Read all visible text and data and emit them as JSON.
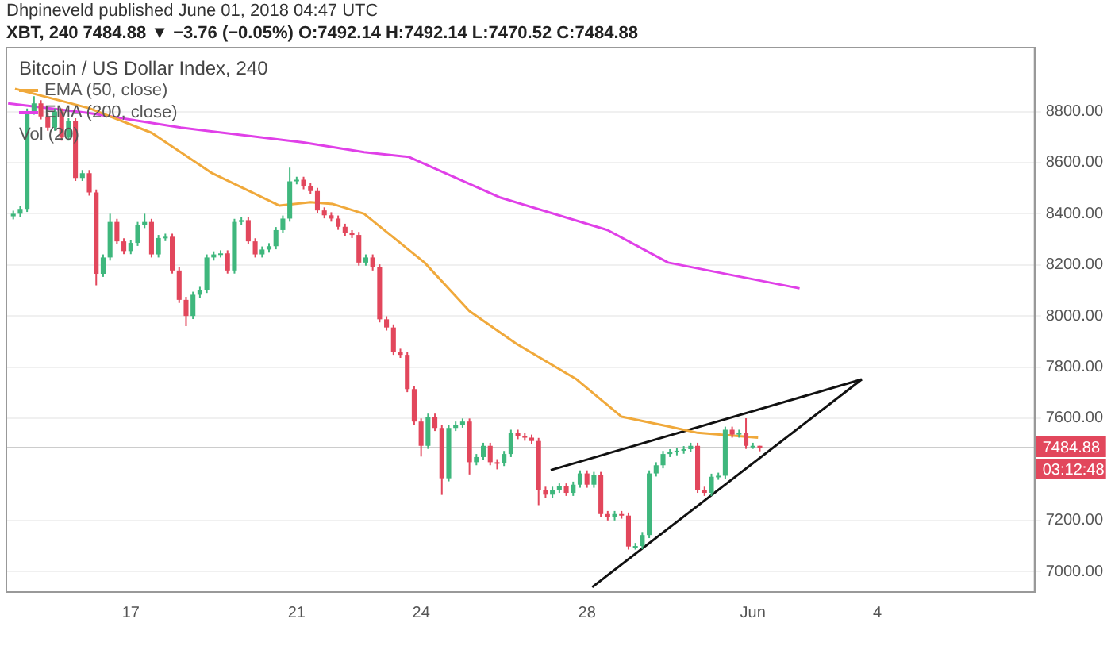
{
  "chart_data": {
    "type": "candlestick",
    "title": "Bitcoin / US Dollar Index, 240",
    "subtitle": "XBT, 240 7484.88 ▼ −3.76 (−0.05%) O:7492.14 H:7492.14 L:7470.52 C:7484.88",
    "annotations": [
      "Dhpineveld published June 01, 2018 04:47 UTC",
      "Vol (20)",
      "03:12:48"
    ],
    "x": [
      "2018-05-14T04:00",
      "2018-05-14T08:00",
      "2018-05-14T12:00",
      "2018-05-14T16:00",
      "2018-05-14T20:00",
      "2018-05-15T00:00",
      "2018-05-15T04:00",
      "2018-05-15T08:00",
      "2018-05-15T12:00",
      "2018-05-15T16:00",
      "2018-05-15T20:00",
      "2018-05-16T00:00",
      "2018-05-16T04:00",
      "2018-05-16T08:00",
      "2018-05-16T12:00",
      "2018-05-16T16:00",
      "2018-05-16T20:00",
      "2018-05-17T00:00",
      "2018-05-17T04:00",
      "2018-05-17T08:00",
      "2018-05-17T12:00",
      "2018-05-17T16:00",
      "2018-05-17T20:00",
      "2018-05-18T00:00",
      "2018-05-18T04:00",
      "2018-05-18T08:00",
      "2018-05-18T12:00",
      "2018-05-18T16:00",
      "2018-05-18T20:00",
      "2018-05-19T00:00",
      "2018-05-19T04:00",
      "2018-05-19T08:00",
      "2018-05-19T12:00",
      "2018-05-19T16:00",
      "2018-05-19T20:00",
      "2018-05-20T00:00",
      "2018-05-20T04:00",
      "2018-05-20T08:00",
      "2018-05-20T12:00",
      "2018-05-20T16:00",
      "2018-05-20T20:00",
      "2018-05-21T00:00",
      "2018-05-21T04:00",
      "2018-05-21T08:00",
      "2018-05-21T12:00",
      "2018-05-21T16:00",
      "2018-05-21T20:00",
      "2018-05-22T00:00",
      "2018-05-22T04:00",
      "2018-05-22T08:00",
      "2018-05-22T12:00",
      "2018-05-22T16:00",
      "2018-05-22T20:00",
      "2018-05-23T00:00",
      "2018-05-23T04:00",
      "2018-05-23T08:00",
      "2018-05-23T12:00",
      "2018-05-23T16:00",
      "2018-05-23T20:00",
      "2018-05-24T00:00",
      "2018-05-24T04:00",
      "2018-05-24T08:00",
      "2018-05-24T12:00",
      "2018-05-24T16:00",
      "2018-05-24T20:00",
      "2018-05-25T00:00",
      "2018-05-25T04:00",
      "2018-05-25T08:00",
      "2018-05-25T12:00",
      "2018-05-25T16:00",
      "2018-05-25T20:00",
      "2018-05-26T00:00",
      "2018-05-26T04:00",
      "2018-05-26T08:00",
      "2018-05-26T12:00",
      "2018-05-26T16:00",
      "2018-05-26T20:00",
      "2018-05-27T00:00",
      "2018-05-27T04:00",
      "2018-05-27T08:00",
      "2018-05-27T12:00",
      "2018-05-27T16:00",
      "2018-05-27T20:00",
      "2018-05-28T00:00",
      "2018-05-28T04:00",
      "2018-05-28T08:00",
      "2018-05-28T12:00",
      "2018-05-28T16:00",
      "2018-05-28T20:00",
      "2018-05-29T00:00",
      "2018-05-29T04:00",
      "2018-05-29T08:00",
      "2018-05-29T12:00",
      "2018-05-29T16:00",
      "2018-05-29T20:00",
      "2018-05-30T00:00",
      "2018-05-30T04:00",
      "2018-05-30T08:00",
      "2018-05-30T12:00",
      "2018-05-30T16:00",
      "2018-05-30T20:00",
      "2018-05-31T00:00",
      "2018-05-31T04:00",
      "2018-05-31T08:00",
      "2018-05-31T12:00",
      "2018-05-31T16:00",
      "2018-05-31T20:00",
      "2018-06-01T00:00",
      "2018-06-01T04:00"
    ],
    "ohlc": [
      [
        8390,
        8412,
        8378,
        8400
      ],
      [
        8400,
        8431,
        8388,
        8419
      ],
      [
        8419,
        8812,
        8407,
        8800
      ],
      [
        8800,
        8860,
        8788,
        8832
      ],
      [
        8832,
        8844,
        8769,
        8781
      ],
      [
        8781,
        8793,
        8725,
        8737
      ],
      [
        8737,
        8812,
        8725,
        8800
      ],
      [
        8800,
        8812,
        8686,
        8698
      ],
      [
        8698,
        8774,
        8686,
        8762
      ],
      [
        8762,
        8774,
        8528,
        8540
      ],
      [
        8540,
        8571,
        8528,
        8559
      ],
      [
        8559,
        8571,
        8471,
        8483
      ],
      [
        8483,
        8495,
        8120,
        8165
      ],
      [
        8165,
        8241,
        8153,
        8229
      ],
      [
        8229,
        8400,
        8217,
        8368
      ],
      [
        8368,
        8380,
        8280,
        8292
      ],
      [
        8292,
        8304,
        8242,
        8254
      ],
      [
        8254,
        8298,
        8242,
        8286
      ],
      [
        8286,
        8368,
        8274,
        8356
      ],
      [
        8356,
        8400,
        8344,
        8368
      ],
      [
        8368,
        8380,
        8229,
        8241
      ],
      [
        8241,
        8317,
        8229,
        8305
      ],
      [
        8305,
        8322,
        8293,
        8310
      ],
      [
        8310,
        8322,
        8166,
        8178
      ],
      [
        8178,
        8190,
        8051,
        8063
      ],
      [
        8063,
        8075,
        7960,
        8000
      ],
      [
        8000,
        8095,
        7988,
        8083
      ],
      [
        8083,
        8114,
        8071,
        8102
      ],
      [
        8102,
        8241,
        8090,
        8229
      ],
      [
        8229,
        8253,
        8217,
        8241
      ],
      [
        8241,
        8257,
        8229,
        8245
      ],
      [
        8245,
        8257,
        8166,
        8178
      ],
      [
        8178,
        8380,
        8166,
        8368
      ],
      [
        8368,
        8387,
        8356,
        8375
      ],
      [
        8375,
        8387,
        8280,
        8292
      ],
      [
        8292,
        8304,
        8229,
        8241
      ],
      [
        8241,
        8272,
        8229,
        8260
      ],
      [
        8260,
        8285,
        8248,
        8273
      ],
      [
        8273,
        8348,
        8261,
        8336
      ],
      [
        8336,
        8393,
        8324,
        8381
      ],
      [
        8381,
        8580,
        8369,
        8527
      ],
      [
        8527,
        8545,
        8515,
        8533
      ],
      [
        8533,
        8545,
        8496,
        8508
      ],
      [
        8508,
        8520,
        8477,
        8489
      ],
      [
        8489,
        8501,
        8401,
        8413
      ],
      [
        8413,
        8425,
        8382,
        8394
      ],
      [
        8394,
        8406,
        8369,
        8381
      ],
      [
        8381,
        8393,
        8337,
        8349
      ],
      [
        8349,
        8361,
        8312,
        8324
      ],
      [
        8324,
        8336,
        8305,
        8317
      ],
      [
        8317,
        8329,
        8197,
        8209
      ],
      [
        8209,
        8241,
        8197,
        8229
      ],
      [
        8229,
        8241,
        8178,
        8190
      ],
      [
        8190,
        8202,
        7975,
        7987
      ],
      [
        7987,
        7999,
        7943,
        7955
      ],
      [
        7955,
        7967,
        7848,
        7860
      ],
      [
        7860,
        7872,
        7836,
        7848
      ],
      [
        7848,
        7860,
        7702,
        7714
      ],
      [
        7714,
        7726,
        7575,
        7587
      ],
      [
        7587,
        7599,
        7450,
        7492
      ],
      [
        7492,
        7618,
        7480,
        7606
      ],
      [
        7606,
        7618,
        7550,
        7562
      ],
      [
        7562,
        7574,
        7300,
        7365
      ],
      [
        7365,
        7574,
        7353,
        7562
      ],
      [
        7562,
        7587,
        7550,
        7575
      ],
      [
        7575,
        7599,
        7563,
        7587
      ],
      [
        7587,
        7599,
        7380,
        7428
      ],
      [
        7428,
        7460,
        7416,
        7448
      ],
      [
        7448,
        7504,
        7436,
        7492
      ],
      [
        7492,
        7504,
        7416,
        7428
      ],
      [
        7428,
        7440,
        7400,
        7425
      ],
      [
        7425,
        7472,
        7413,
        7460
      ],
      [
        7460,
        7555,
        7448,
        7543
      ],
      [
        7543,
        7555,
        7518,
        7530
      ],
      [
        7530,
        7542,
        7512,
        7524
      ],
      [
        7524,
        7536,
        7499,
        7511
      ],
      [
        7511,
        7523,
        7260,
        7320
      ],
      [
        7320,
        7332,
        7289,
        7301
      ],
      [
        7301,
        7332,
        7289,
        7320
      ],
      [
        7320,
        7345,
        7308,
        7333
      ],
      [
        7333,
        7345,
        7296,
        7308
      ],
      [
        7308,
        7352,
        7296,
        7340
      ],
      [
        7340,
        7396,
        7328,
        7384
      ],
      [
        7384,
        7396,
        7328,
        7340
      ],
      [
        7340,
        7390,
        7328,
        7378
      ],
      [
        7378,
        7390,
        7213,
        7225
      ],
      [
        7225,
        7237,
        7200,
        7212
      ],
      [
        7212,
        7237,
        7200,
        7225
      ],
      [
        7225,
        7237,
        7207,
        7219
      ],
      [
        7219,
        7231,
        7086,
        7098
      ],
      [
        7098,
        7112,
        7086,
        7100
      ],
      [
        7100,
        7155,
        7088,
        7143
      ],
      [
        7143,
        7396,
        7131,
        7384
      ],
      [
        7384,
        7428,
        7372,
        7416
      ],
      [
        7416,
        7472,
        7404,
        7460
      ],
      [
        7460,
        7479,
        7448,
        7467
      ],
      [
        7467,
        7485,
        7455,
        7473
      ],
      [
        7473,
        7491,
        7461,
        7479
      ],
      [
        7479,
        7504,
        7467,
        7492
      ],
      [
        7492,
        7504,
        7308,
        7320
      ],
      [
        7320,
        7332,
        7296,
        7308
      ],
      [
        7308,
        7383,
        7296,
        7371
      ],
      [
        7371,
        7387,
        7359,
        7375
      ],
      [
        7375,
        7567,
        7363,
        7555
      ],
      [
        7555,
        7567,
        7524,
        7536
      ],
      [
        7536,
        7555,
        7524,
        7543
      ],
      [
        7543,
        7600,
        7480,
        7492
      ],
      [
        7492,
        7504,
        7480,
        7492.14
      ],
      [
        7492.14,
        7492.14,
        7470.52,
        7484.88
      ]
    ],
    "series": [
      {
        "type": "line",
        "name": "EMA (50, close)",
        "color": "#f0a93b",
        "x": [
          "2018-05-14T05:00",
          "2018-05-16T00:00",
          "2018-05-17T12:00",
          "2018-05-18T23:00",
          "2018-05-20T14:00",
          "2018-05-21T08:00",
          "2018-05-21T21:00",
          "2018-05-22T15:00",
          "2018-05-24T02:00",
          "2018-05-25T04:00",
          "2018-05-26T07:00",
          "2018-05-27T18:00",
          "2018-05-28T20:00",
          "2018-05-29T23:00",
          "2018-05-30T16:00",
          "2018-06-01T03:00"
        ],
        "values": [
          8889,
          8813,
          8717,
          8559,
          8432,
          8445,
          8438,
          8400,
          8209,
          8019,
          7892,
          7752,
          7606,
          7568,
          7543,
          7524
        ]
      },
      {
        "type": "line",
        "name": "EMA (200, close)",
        "color": "#e040e8",
        "x": [
          "2018-05-14T01:00",
          "2018-05-16T00:00",
          "2018-05-18T05:00",
          "2018-05-21T04:00",
          "2018-05-22T15:00",
          "2018-05-23T17:00",
          "2018-05-25T22:00",
          "2018-05-28T12:00",
          "2018-05-29T23:00",
          "2018-06-02T03:00"
        ],
        "values": [
          8832,
          8794,
          8737,
          8679,
          8641,
          8622,
          8463,
          8336,
          8209,
          8108
        ]
      },
      {
        "type": "line",
        "color": "#111111",
        "x": [
          "2018-05-27T03:00",
          "2018-06-03T15:00"
        ],
        "values": [
          7397,
          7752
        ]
      },
      {
        "type": "line",
        "color": "#111111",
        "x": [
          "2018-05-28T03:00",
          "2018-06-03T15:00"
        ],
        "values": [
          6939,
          7752
        ]
      }
    ],
    "ref_lines": [
      {
        "axis": "y",
        "value": 7484.88,
        "label": "7484.88",
        "color": "#cccccc"
      }
    ],
    "xlim": [
      "2018-05-14T00:00",
      "2018-06-07T19:00"
    ],
    "ylim": [
      6920,
      9050
    ],
    "xticks": [
      {
        "value": "2018-05-17",
        "label": "17"
      },
      {
        "value": "2018-05-21",
        "label": "21"
      },
      {
        "value": "2018-05-24",
        "label": "24"
      },
      {
        "value": "2018-05-28",
        "label": "28"
      },
      {
        "value": "2018-06-01",
        "label": "Jun"
      },
      {
        "value": "2018-06-04",
        "label": "4"
      }
    ],
    "yticks": [
      {
        "value": 7000,
        "label": "7000.00"
      },
      {
        "value": 7200,
        "label": "7200.00"
      },
      {
        "value": 7600,
        "label": "7600.00"
      },
      {
        "value": 7800,
        "label": "7800.00"
      },
      {
        "value": 8000,
        "label": "8000.00"
      },
      {
        "value": 8200,
        "label": "8200.00"
      },
      {
        "value": 8400,
        "label": "8400.00"
      },
      {
        "value": 8600,
        "label": "8600.00"
      },
      {
        "value": 8800,
        "label": "8800.00"
      }
    ],
    "grid": "y",
    "legend": "top left"
  }
}
